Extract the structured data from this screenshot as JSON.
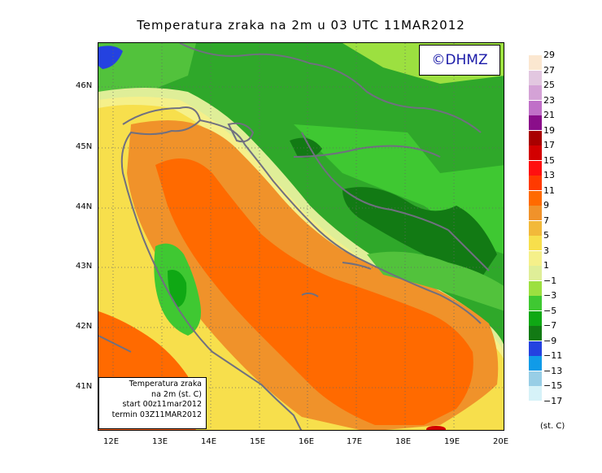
{
  "title": "Temperatura zraka na 2m u 03 UTC 11MAR2012",
  "credit": "©DHMZ",
  "info_box": {
    "line1": "Temperatura zraka",
    "line2": "na 2m (st. C)",
    "line3": "start 00z11mar2012",
    "line4": "termin 03Z11MAR2012"
  },
  "lat_labels": [
    "46N",
    "45N",
    "44N",
    "43N",
    "42N",
    "41N"
  ],
  "lon_labels": [
    "12E",
    "13E",
    "14E",
    "15E",
    "16E",
    "17E",
    "18E",
    "19E",
    "20E"
  ],
  "legend": {
    "units": "(st. C)",
    "labels": [
      "29",
      "27",
      "25",
      "23",
      "21",
      "19",
      "17",
      "15",
      "13",
      "11",
      "9",
      "7",
      "5",
      "3",
      "1",
      "−1",
      "−3",
      "−5",
      "−7",
      "−9",
      "−11",
      "−13",
      "−15",
      "−17"
    ],
    "colors": [
      "#fbe7d0",
      "#e2c7e0",
      "#d4a2d6",
      "#c070c8",
      "#8a0e8a",
      "#a80000",
      "#d20000",
      "#ff1010",
      "#ff3a00",
      "#ff6a00",
      "#f0922a",
      "#f2b93a",
      "#f7df4c",
      "#f5f08a",
      "#dfee98",
      "#9ce040",
      "#3fc832",
      "#0fa814",
      "#127a14",
      "#2442e0",
      "#109be8",
      "#98cee6",
      "#d6f2f8"
    ]
  },
  "colors": {
    "sea_warm": "#ff6a00",
    "coast_mid": "#f0922a",
    "land_green": "#2fa82a",
    "dark_green": "#127a14",
    "borders": "#707080"
  }
}
